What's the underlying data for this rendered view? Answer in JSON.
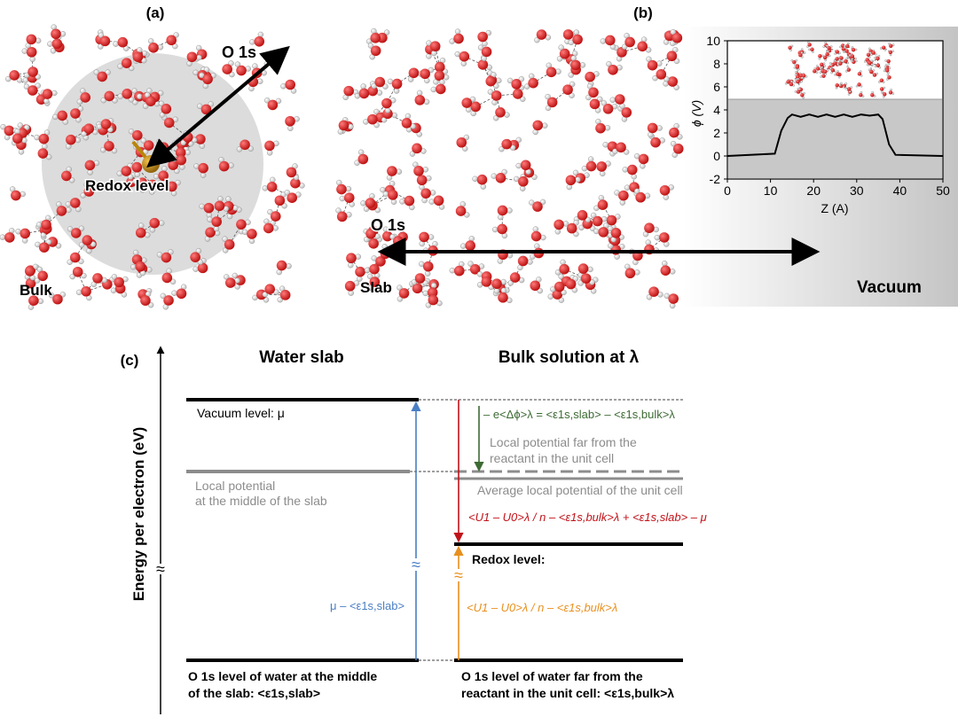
{
  "panel_a": {
    "label": "(a)",
    "o1s": "O 1s",
    "redox": "Redox level",
    "bulk": "Bulk"
  },
  "panel_b": {
    "label": "(b)",
    "o1s": "O 1s",
    "slab": "Slab",
    "vacuum": "Vacuum"
  },
  "chart_data": {
    "type": "line",
    "title": "",
    "xlabel": "Z (A)",
    "ylabel": "ϕ (V)",
    "xlim": [
      0,
      50
    ],
    "ylim": [
      -2,
      10
    ],
    "x_ticks": [
      "0",
      "10",
      "20",
      "30",
      "40",
      "50"
    ],
    "y_ticks": [
      "-2",
      "0",
      "2",
      "4",
      "6",
      "8",
      "10"
    ],
    "series": [
      {
        "name": "potential",
        "x": [
          0,
          11,
          12.5,
          14,
          15,
          17,
          19,
          21,
          23,
          25,
          27,
          29,
          31,
          33,
          35,
          36,
          37.5,
          39,
          50
        ],
        "values": [
          0,
          0.2,
          2.2,
          3.3,
          3.6,
          3.4,
          3.6,
          3.4,
          3.6,
          3.4,
          3.6,
          3.4,
          3.6,
          3.5,
          3.6,
          3.2,
          1.0,
          0.1,
          0
        ]
      }
    ],
    "grid": false
  },
  "panel_c": {
    "label": "(c)",
    "axis_label": "Energy per electron (eV)",
    "water_slab_title": "Water slab",
    "bulk_title": "Bulk solution at λ",
    "vacuum_level": "Vacuum level: μ",
    "local_potential_slab": [
      "Local potential",
      "at the middle of the slab"
    ],
    "local_potential_far": [
      "Local potential far from the",
      "reactant in the unit cell"
    ],
    "average_local": "Average local potential of the unit cell",
    "delta_phi": "– e<Δϕ>λ = <ε1s,slab> – <ε1s,bulk>λ",
    "red_expr": "<U1 – U0>λ / n – <ε1s,bulk>λ + <ε1s,slab> – μ",
    "redox_level": "Redox level:",
    "blue_expr": "μ – <ε1s,slab>",
    "orange_expr": "<U1 – U0>λ / n – <ε1s,bulk>λ",
    "o1s_slab": [
      "O 1s level of water at the middle",
      "of the slab: <ε1s,slab>"
    ],
    "o1s_bulk": [
      "O 1s level of water far from the",
      "reactant in the unit cell: <ε1s,bulk>λ"
    ],
    "colors": {
      "blue": "#4a7fc4",
      "red": "#c0131a",
      "orange": "#e8901e",
      "green": "#3d6b34",
      "gray": "#8c8c8c"
    }
  }
}
